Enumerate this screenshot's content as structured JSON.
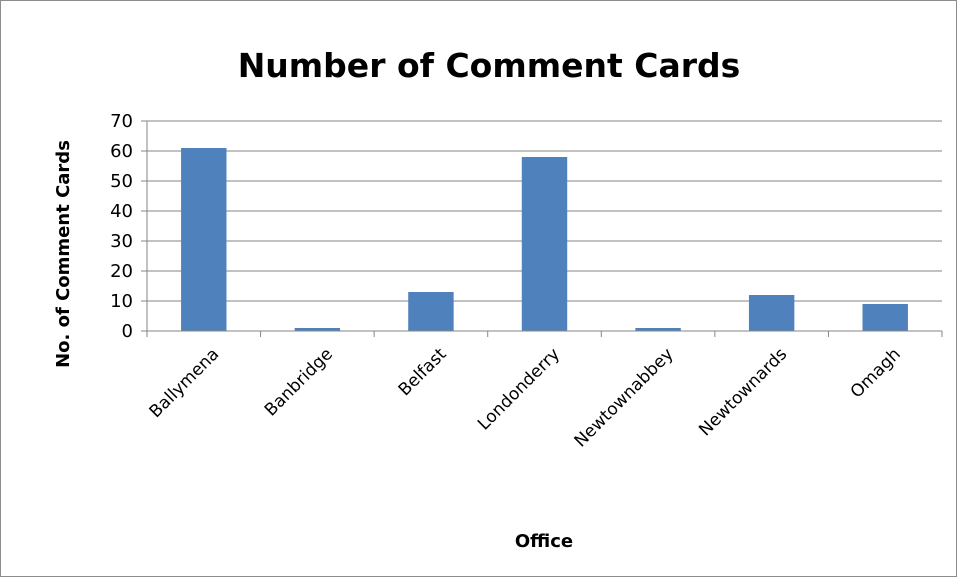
{
  "chart_data": {
    "type": "bar",
    "title": "Number of Comment Cards",
    "xlabel": "Office",
    "ylabel": "No. of Comment Cards",
    "categories": [
      "Ballymena",
      "Banbridge",
      "Belfast",
      "Londonderry",
      "Newtownabbey",
      "Newtownards",
      "Omagh"
    ],
    "values": [
      61,
      1,
      13,
      58,
      1,
      12,
      9
    ],
    "ylim": [
      0,
      70
    ],
    "yticks": [
      0,
      10,
      20,
      30,
      40,
      50,
      60,
      70
    ],
    "grid": true,
    "legend": "none",
    "bar_color": "#4f81bd"
  }
}
